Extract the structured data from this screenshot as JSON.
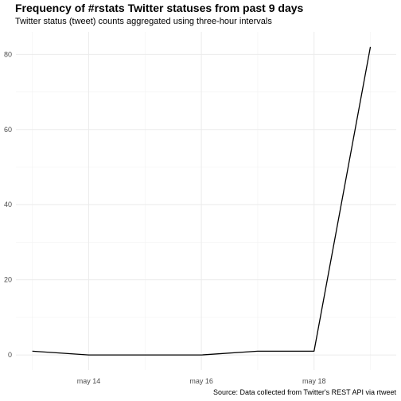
{
  "chart_data": {
    "type": "line",
    "title": "Frequency of #rstats Twitter statuses from past 9 days",
    "subtitle": "Twitter status (tweet) counts aggregated using three-hour intervals",
    "caption": "Source: Data collected from Twitter's REST API via rtweet",
    "xlabel": "",
    "ylabel": "",
    "x_tick_labels": [
      "may 14",
      "may 16",
      "may 18"
    ],
    "y_tick_labels": [
      "0",
      "20",
      "40",
      "60",
      "80"
    ],
    "ylim": [
      -4,
      86
    ],
    "xlim": [
      "May 12 17:00",
      "May 19 11:00"
    ],
    "grid": true,
    "series": [
      {
        "x": [
          "May 13 00:00",
          "May 14 00:00",
          "May 15 00:00",
          "May 16 00:00",
          "May 17 00:00",
          "May 18 00:00",
          "May 19 00:00"
        ],
        "values": [
          1,
          0,
          0,
          0,
          1,
          1,
          82
        ],
        "color": "#000000"
      }
    ]
  }
}
